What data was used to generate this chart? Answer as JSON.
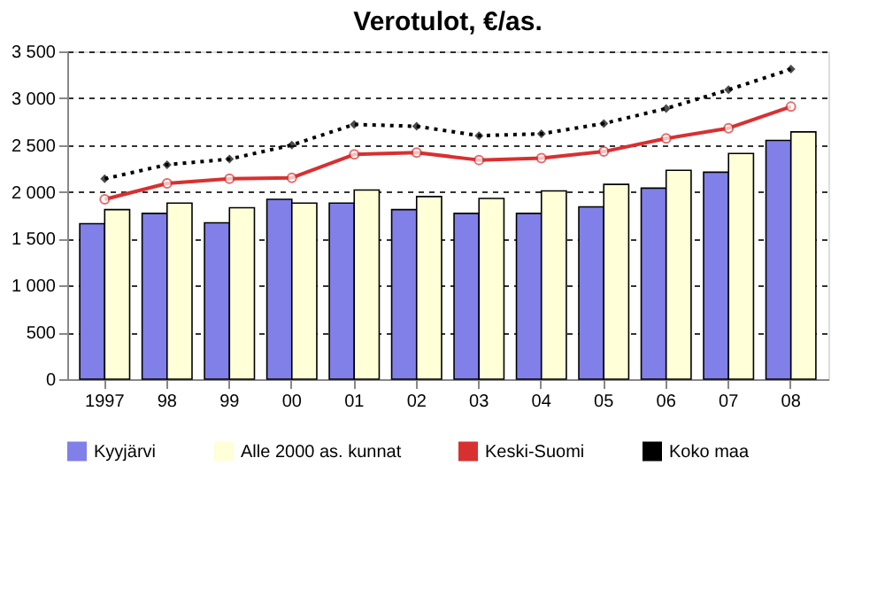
{
  "chart_data": {
    "type": "bar",
    "title": "Verotulot, €/as.",
    "categories": [
      "1997",
      "98",
      "99",
      "00",
      "01",
      "02",
      "03",
      "04",
      "05",
      "06",
      "07",
      "08"
    ],
    "series": [
      {
        "name": "Kyyjärvi",
        "color": "#8080e8",
        "values": [
          1660,
          1770,
          1670,
          1920,
          1880,
          1810,
          1770,
          1770,
          1840,
          2040,
          2210,
          2550
        ]
      },
      {
        "name": "Alle 2000 as. kunnat",
        "color": "#ffffd8",
        "values": [
          1810,
          1880,
          1830,
          1880,
          2020,
          1950,
          1930,
          2010,
          2080,
          2230,
          2410,
          2640
        ]
      },
      {
        "name": "Keski-Suomi",
        "color": "#d83030",
        "type": "line",
        "marker": "circle",
        "line_style": "solid",
        "values": [
          1920,
          2090,
          2140,
          2150,
          2400,
          2420,
          2340,
          2360,
          2430,
          2570,
          2680,
          2910
        ]
      },
      {
        "name": "Koko maa",
        "color": "#000000",
        "type": "line",
        "marker": "diamond",
        "line_style": "dotted",
        "values": [
          2140,
          2290,
          2350,
          2500,
          2720,
          2700,
          2600,
          2620,
          2730,
          2890,
          3090,
          3310
        ]
      }
    ],
    "ylim": [
      0,
      3500
    ],
    "yticks": [
      0,
      500,
      {
        "value": 1000,
        "label": "1 000"
      },
      {
        "value": 1500,
        "label": "1 500"
      },
      {
        "value": 2000,
        "label": "2 000"
      },
      {
        "value": 2500,
        "label": "2 500"
      },
      {
        "value": 3000,
        "label": "3 000"
      },
      {
        "value": 3500,
        "label": "3 500"
      }
    ],
    "grid": "y",
    "legend": "bottom"
  }
}
